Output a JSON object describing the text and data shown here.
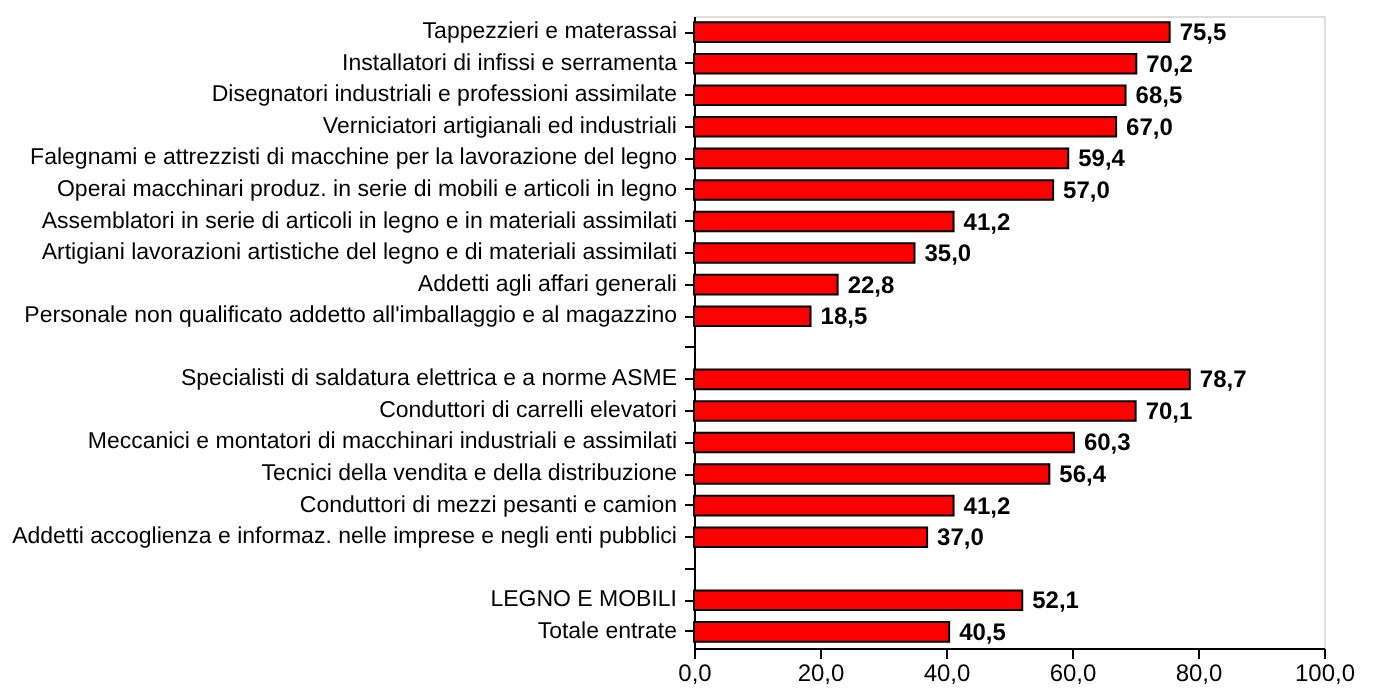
{
  "chart_data": {
    "type": "bar",
    "orientation": "horizontal",
    "categories": [
      "Tappezzieri e materassai",
      "Installatori di infissi e serramenta",
      "Disegnatori industriali e professioni assimilate",
      "Verniciatori artigianali ed industriali",
      "Falegnami e attrezzisti di macchine per la lavorazione del legno",
      "Operai macchinari produz. in serie di mobili e articoli in legno",
      "Assemblatori in serie di articoli in legno e in materiali assimilati",
      "Artigiani lavorazioni artistiche del legno e di materiali assimilati",
      "Addetti agli affari generali",
      "Personale non qualificato addetto all'imballaggio e al magazzino",
      null,
      "Specialisti di saldatura elettrica e a norme ASME",
      "Conduttori di carrelli elevatori",
      "Meccanici e montatori di macchinari industriali e assimilati",
      "Tecnici della vendita e della distribuzione",
      "Conduttori di mezzi pesanti e camion",
      "Addetti accoglienza e informaz. nelle imprese e negli enti pubblici",
      null,
      "LEGNO E MOBILI",
      "Totale entrate"
    ],
    "values": [
      75.5,
      70.2,
      68.5,
      67.0,
      59.4,
      57.0,
      41.2,
      35.0,
      22.8,
      18.5,
      null,
      78.7,
      70.1,
      60.3,
      56.4,
      41.2,
      37.0,
      null,
      52.1,
      40.5
    ],
    "value_labels": [
      "75,5",
      "70,2",
      "68,5",
      "67,0",
      "59,4",
      "57,0",
      "41,2",
      "35,0",
      "22,8",
      "18,5",
      null,
      "78,7",
      "70,1",
      "60,3",
      "56,4",
      "41,2",
      "37,0",
      null,
      "52,1",
      "40,5"
    ],
    "color": "#ff0000",
    "xlim": [
      0,
      100
    ],
    "xticks": [
      {
        "value": 0,
        "label": "0,0"
      },
      {
        "value": 20,
        "label": "20,0"
      },
      {
        "value": 40,
        "label": "40,0"
      },
      {
        "value": 60,
        "label": "60,0"
      },
      {
        "value": 80,
        "label": "80,0"
      },
      {
        "value": 100,
        "label": "100,0"
      }
    ],
    "grid": false
  }
}
